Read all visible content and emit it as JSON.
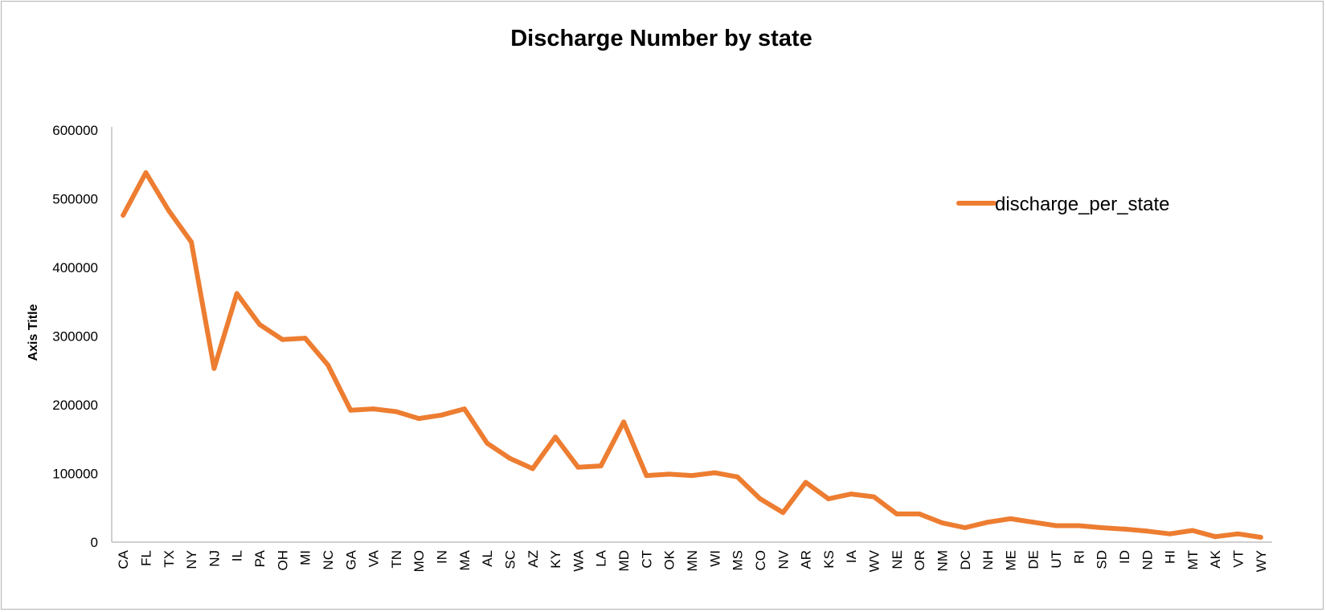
{
  "chart_data": {
    "type": "line",
    "title": "Discharge Number by state",
    "xlabel": "",
    "ylabel": "Axis Title",
    "ylim": [
      0,
      600000
    ],
    "yticks": [
      "0",
      "100000",
      "200000",
      "300000",
      "400000",
      "500000",
      "600000"
    ],
    "grid": false,
    "legend_position": "right",
    "categories": [
      "CA",
      "FL",
      "TX",
      "NY",
      "NJ",
      "IL",
      "PA",
      "OH",
      "MI",
      "NC",
      "GA",
      "VA",
      "TN",
      "MO",
      "IN",
      "MA",
      "AL",
      "SC",
      "AZ",
      "KY",
      "WA",
      "LA",
      "MD",
      "CT",
      "OK",
      "MN",
      "WI",
      "MS",
      "CO",
      "NV",
      "AR",
      "KS",
      "IA",
      "WV",
      "NE",
      "OR",
      "NM",
      "DC",
      "NH",
      "ME",
      "DE",
      "UT",
      "RI",
      "SD",
      "ID",
      "ND",
      "HI",
      "MT",
      "AK",
      "VT",
      "WY"
    ],
    "series": [
      {
        "name": "discharge_per_state",
        "color": "#ED7D31",
        "values": [
          476000,
          538000,
          483000,
          437000,
          253000,
          362000,
          317000,
          295000,
          297000,
          258000,
          192000,
          194000,
          190000,
          180000,
          185000,
          194000,
          144000,
          122000,
          107000,
          153000,
          109000,
          111000,
          175000,
          97000,
          99000,
          97000,
          101000,
          95000,
          63000,
          43000,
          87000,
          63000,
          70000,
          66000,
          41000,
          41000,
          28000,
          21000,
          29000,
          34000,
          29000,
          24000,
          24000,
          21000,
          19000,
          16000,
          12000,
          17000,
          8000,
          12000,
          7000
        ]
      }
    ]
  }
}
